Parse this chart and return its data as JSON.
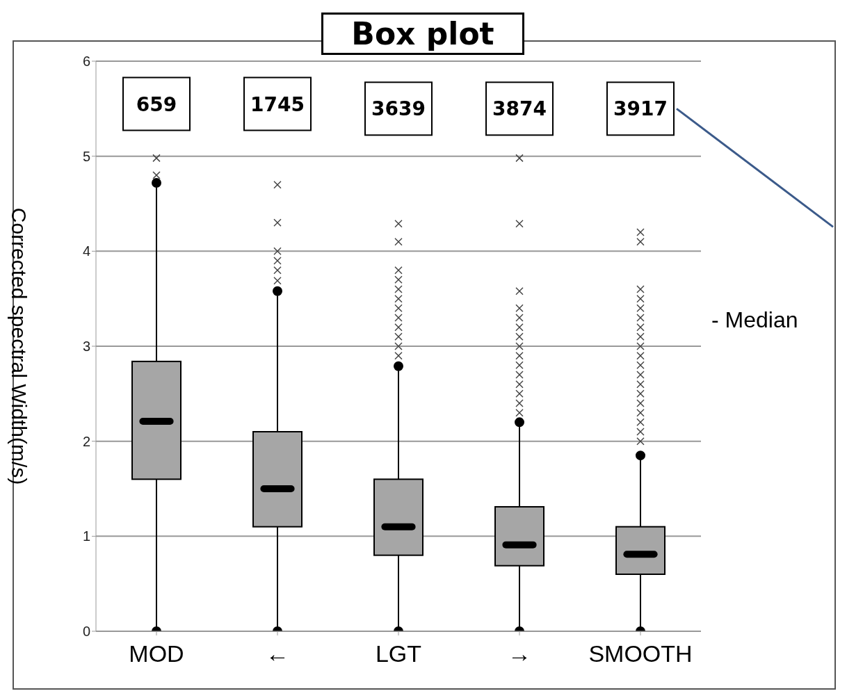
{
  "chart_data": {
    "type": "box",
    "title": "Box plot",
    "ylabel": "Corrected spectral Width(m/s)",
    "categories": [
      "MOD",
      "←",
      "LGT",
      "→",
      "SMOOTH"
    ],
    "color": "#a6a6a6",
    "boxes": [
      {
        "low": 0,
        "q1": 1.6,
        "median": 2.21,
        "q3": 2.84,
        "high": 4.72,
        "outliers": [
          4.98,
          4.8
        ]
      },
      {
        "low": 0,
        "q1": 1.1,
        "median": 1.5,
        "q3": 2.1,
        "high": 3.58,
        "outliers": [
          4.7,
          4.3,
          4.0,
          3.9,
          3.8,
          3.69
        ]
      },
      {
        "low": 0,
        "q1": 0.8,
        "median": 1.1,
        "q3": 1.6,
        "high": 2.79,
        "outliers": [
          4.29,
          4.1,
          3.8,
          3.7,
          3.6,
          3.5,
          3.4,
          3.3,
          3.2,
          3.1,
          3.0,
          2.9
        ]
      },
      {
        "low": 0,
        "q1": 0.69,
        "median": 0.91,
        "q3": 1.31,
        "high": 2.2,
        "outliers": [
          4.98,
          4.29,
          3.58,
          3.4,
          3.3,
          3.2,
          3.1,
          3.0,
          2.9,
          2.8,
          2.7,
          2.6,
          2.5,
          2.4,
          2.3
        ]
      },
      {
        "low": 0,
        "q1": 0.6,
        "median": 0.81,
        "q3": 1.1,
        "high": 1.85,
        "outliers": [
          4.2,
          4.1,
          3.6,
          3.5,
          3.4,
          3.3,
          3.2,
          3.1,
          3.0,
          2.9,
          2.8,
          2.7,
          2.6,
          2.5,
          2.4,
          2.3,
          2.2,
          2.1,
          2.0
        ]
      }
    ],
    "ylim": [
      0,
      6
    ],
    "yticks": [
      0,
      1,
      2,
      3,
      4,
      5,
      6
    ],
    "grid": "y",
    "legend": false,
    "marker": "cross",
    "annotations": [
      "659",
      "1745",
      "3639",
      "3874",
      "3917",
      "- Median"
    ]
  }
}
